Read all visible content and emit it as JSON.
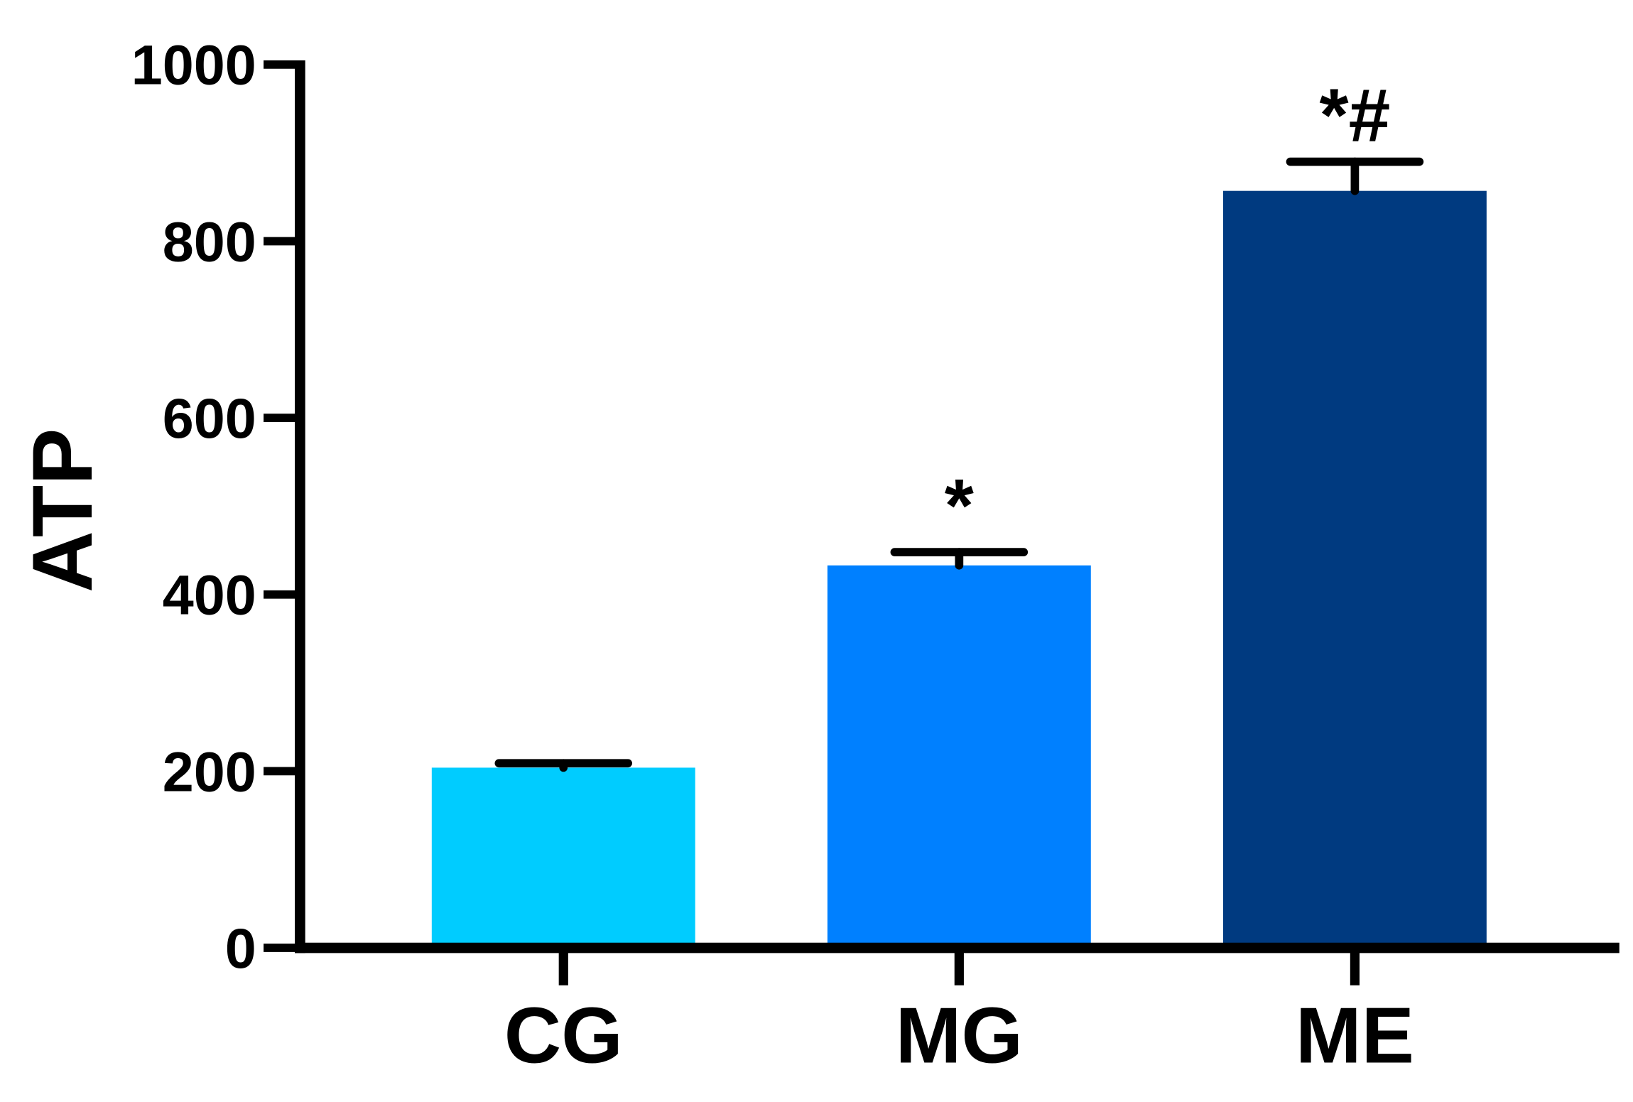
{
  "chart_data": {
    "type": "bar",
    "y_label": "ATP",
    "categories": [
      "CG",
      "MG",
      "ME"
    ],
    "values": [
      204,
      433,
      857
    ],
    "errors": [
      5,
      15,
      33
    ],
    "colors": [
      "#00ccff",
      "#0080ff",
      "#003a80"
    ],
    "annotations": [
      null,
      "*",
      "*#"
    ],
    "ylim": [
      0,
      1000
    ],
    "yticks": [
      0,
      200,
      400,
      600,
      800,
      1000
    ],
    "grid": false
  }
}
